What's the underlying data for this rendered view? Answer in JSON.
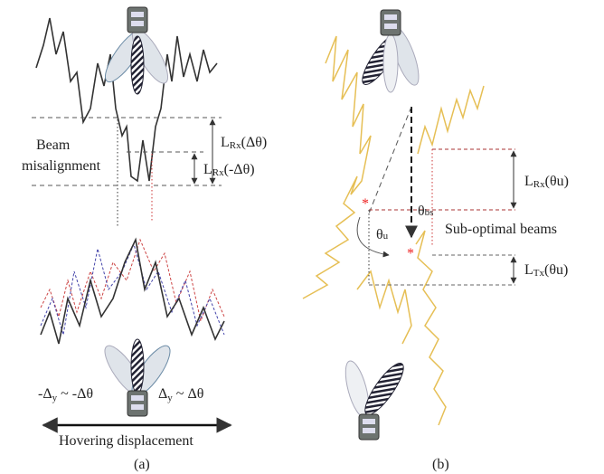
{
  "panel_a": {
    "caption": "(a)",
    "misalignment_label": [
      "Beam",
      "misalignment"
    ],
    "rx_loss_pos": [
      "L",
      "Rx",
      "(Δθ)"
    ],
    "rx_loss_neg": [
      "L",
      "Rx",
      "(-Δθ)"
    ],
    "left_shift": [
      "-Δ",
      "y",
      " ~ -Δθ"
    ],
    "right_shift": [
      "Δ",
      "y",
      " ~ Δθ"
    ],
    "hover_label": "Hovering displacement"
  },
  "panel_b": {
    "caption": "(b)",
    "rx_loss": [
      "L",
      "Rx",
      "(θu)"
    ],
    "bs_angle": [
      "θ",
      "bs"
    ],
    "u_angle": [
      "θ",
      "u"
    ],
    "suboptimal_label": "Sub-optimal beams",
    "tx_loss": [
      "L",
      "Tx",
      "(θu)"
    ]
  }
}
